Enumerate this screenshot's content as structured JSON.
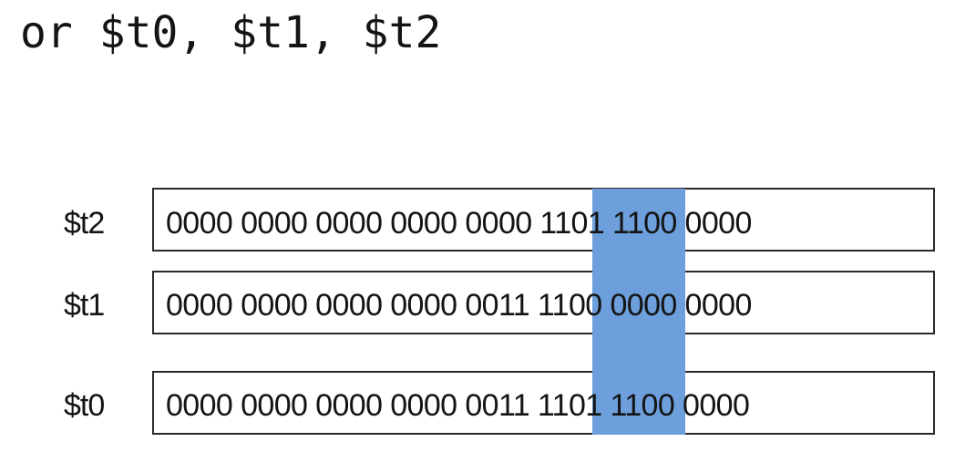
{
  "instruction": "or $t0, $t1, $t2",
  "colors": {
    "highlight": "#6d9fdc",
    "text": "#141414",
    "box_border": "#2a2a2a"
  },
  "registers": [
    {
      "label": "$t2",
      "value": "0000 0000 0000 0000 0000 1101 1100 0000"
    },
    {
      "label": "$t1",
      "value": "0000 0000 0000 0000 0011 1100 0000 0000"
    },
    {
      "label": "$t0",
      "value": "0000 0000 0000 0000 0011 1101 1100 0000"
    }
  ]
}
